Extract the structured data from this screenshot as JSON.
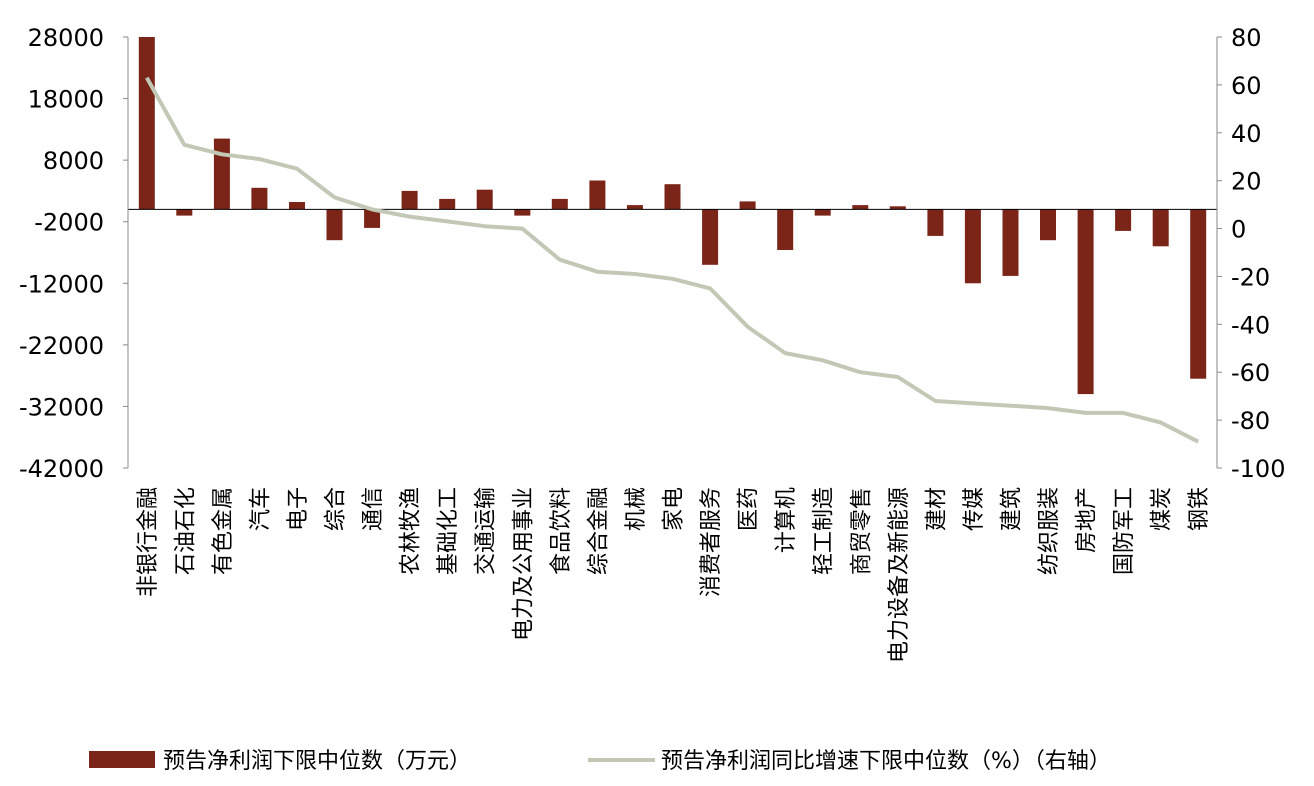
{
  "chart_data": {
    "type": "bar",
    "categories": [
      "非银行金融",
      "石油石化",
      "有色金属",
      "汽车",
      "电子",
      "综合",
      "通信",
      "农林牧渔",
      "基础化工",
      "交通运输",
      "电力及公用事业",
      "食品饮料",
      "综合金融",
      "机械",
      "家电",
      "消费者服务",
      "医药",
      "计算机",
      "轻工制造",
      "商贸零售",
      "电力设备及新能源",
      "建材",
      "传媒",
      "建筑",
      "纺织服装",
      "房地产",
      "国防军工",
      "煤炭",
      "钢铁"
    ],
    "series": [
      {
        "name": "预告净利润下限中位数（万元）",
        "type": "bar",
        "axis": "left",
        "color": "#7b2418",
        "values": [
          28000,
          -1000,
          11500,
          3500,
          1200,
          -5000,
          -3000,
          3000,
          1700,
          3200,
          -1000,
          1700,
          4700,
          700,
          4100,
          -9000,
          1300,
          -6600,
          -1000,
          700,
          500,
          -4300,
          -12000,
          -10800,
          -5000,
          -30000,
          -3500,
          -6000,
          -27500
        ]
      },
      {
        "name": "预告净利润同比增速下限中位数（%）（右轴）",
        "type": "line",
        "axis": "right",
        "color": "#c2c8b6",
        "values": [
          63,
          35,
          31,
          29,
          25,
          13,
          8,
          5,
          3,
          1,
          0,
          -13,
          -18,
          -19,
          -21,
          -25,
          -41,
          -52,
          -55,
          -60,
          -62,
          -72,
          -73,
          -74,
          -75,
          -77,
          -77,
          -81,
          -89
        ]
      }
    ],
    "left_axis": {
      "ticks": [
        "28000",
        "18000",
        "8000",
        "-2000",
        "-12000",
        "-22000",
        "-32000",
        "-42000"
      ],
      "range": [
        -42000,
        28000
      ]
    },
    "right_axis": {
      "ticks": [
        "80",
        "60",
        "40",
        "20",
        "0",
        "-20",
        "-40",
        "-60",
        "-80",
        "-100"
      ],
      "range": [
        -100,
        80
      ]
    },
    "legend": {
      "position": "bottom",
      "bar_label": "预告净利润下限中位数（万元）",
      "line_label": "预告净利润同比增速下限中位数（%）（右轴）"
    }
  }
}
